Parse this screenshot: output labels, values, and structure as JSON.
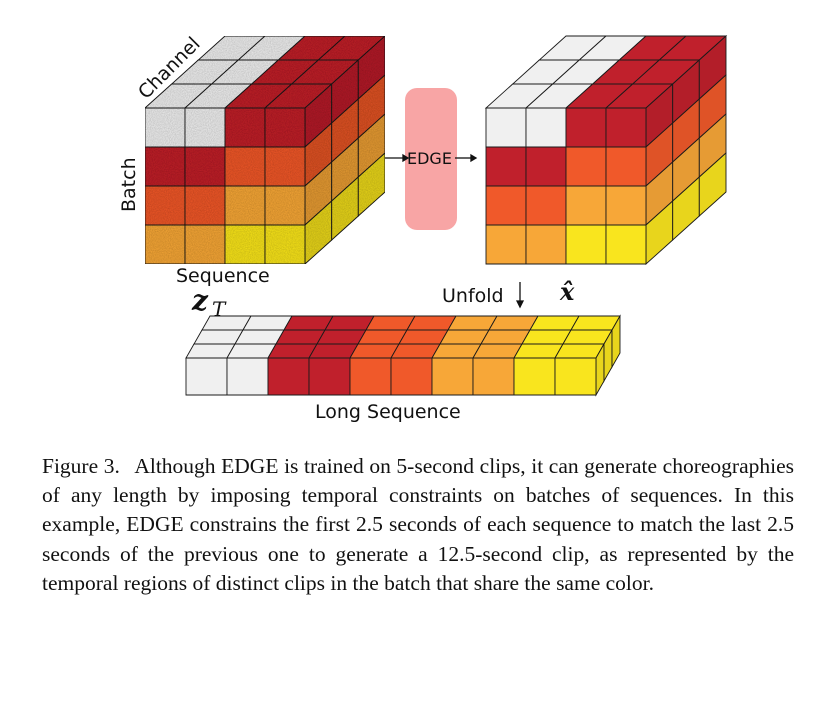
{
  "diagram": {
    "labels": {
      "channel": "Channel",
      "batch": "Batch",
      "sequence": "Sequence",
      "edge": "EDGE",
      "unfold": "Unfold",
      "long_sequence": "Long Sequence",
      "z_main": "z",
      "z_sub": "T",
      "x_hat": "x̂"
    },
    "colors": {
      "white": "#f0f0f0",
      "red": "#c0202c",
      "orange": "#f0592a",
      "light_orange": "#f7a738",
      "yellow": "#f9e51e",
      "edge_box": "#f8a5a5"
    }
  },
  "caption": {
    "number": "Figure 3.",
    "text": "Although EDGE is trained on 5-second clips, it can generate choreographies of any length by imposing temporal constraints on batches of sequences. In this example, EDGE constrains the first 2.5 seconds of each sequence to match the last 2.5 seconds of the previous one to generate a 12.5-second clip, as represented by the temporal regions of distinct clips in the batch that share the same color."
  }
}
